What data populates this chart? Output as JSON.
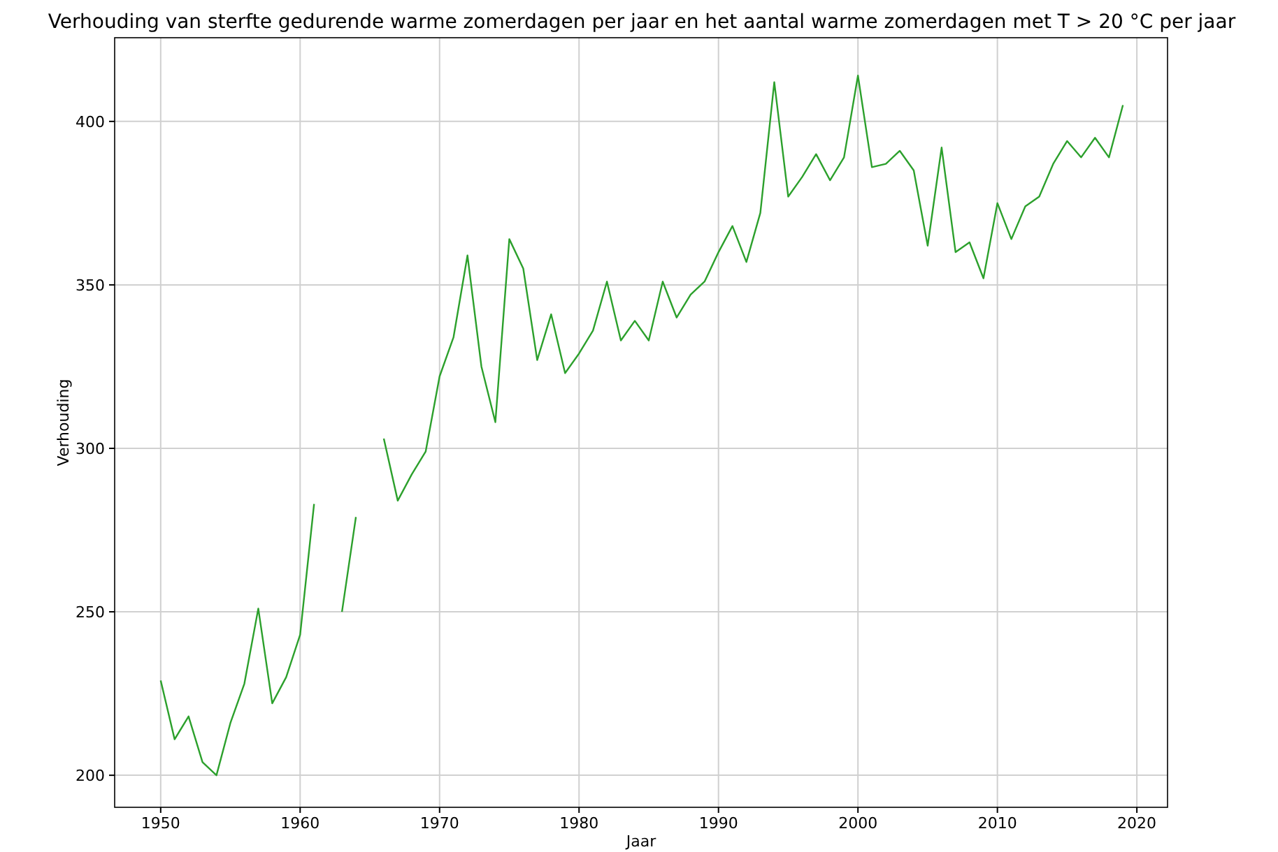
{
  "chart_data": {
    "type": "line",
    "title": "Verhouding van sterfte gedurende warme zomerdagen per jaar en het aantal warme zomerdagen met T > 20 °C per jaar",
    "xlabel": "Jaar",
    "ylabel": "Verhouding",
    "x": [
      1950,
      1951,
      1952,
      1953,
      1954,
      1955,
      1956,
      1957,
      1958,
      1959,
      1960,
      1961,
      1962,
      1963,
      1964,
      1965,
      1966,
      1967,
      1968,
      1969,
      1970,
      1971,
      1972,
      1973,
      1974,
      1975,
      1976,
      1977,
      1978,
      1979,
      1980,
      1981,
      1982,
      1983,
      1984,
      1985,
      1986,
      1987,
      1988,
      1989,
      1990,
      1991,
      1992,
      1993,
      1994,
      1995,
      1996,
      1997,
      1998,
      1999,
      2000,
      2001,
      2002,
      2003,
      2004,
      2005,
      2006,
      2007,
      2008,
      2009,
      2010,
      2011,
      2012,
      2013,
      2014,
      2015,
      2016,
      2017,
      2018,
      2019
    ],
    "series": [
      {
        "color": "#2ca02c",
        "values": [
          229,
          211,
          218,
          204,
          200,
          216,
          228,
          251,
          222,
          230,
          243,
          283,
          null,
          250,
          279,
          null,
          303,
          284,
          292,
          299,
          322,
          334,
          359,
          325,
          308,
          364,
          355,
          327,
          341,
          323,
          329,
          336,
          351,
          333,
          339,
          333,
          351,
          340,
          347,
          351,
          360,
          368,
          357,
          372,
          412,
          377,
          383,
          390,
          382,
          389,
          414,
          386,
          387,
          391,
          385,
          362,
          392,
          360,
          363,
          352,
          375,
          364,
          374,
          377,
          387,
          394,
          389,
          395,
          389,
          405
        ]
      }
    ],
    "xlim": [
      1946.7,
      2022.2
    ],
    "ylim": [
      190.2,
      425.6
    ],
    "xticks": [
      1950,
      1960,
      1970,
      1980,
      1990,
      2000,
      2010,
      2020
    ],
    "yticks": [
      200,
      250,
      300,
      350,
      400
    ],
    "grid": true,
    "marker": "none",
    "line_style": "solid"
  }
}
